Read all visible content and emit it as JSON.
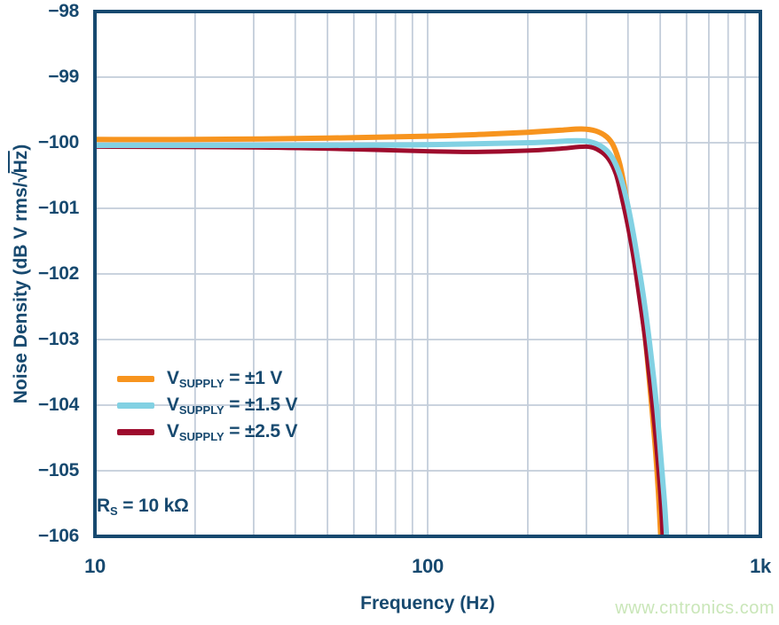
{
  "watermark": "www.cntronics.com",
  "annotation": {
    "main": "R",
    "sub": "S",
    "rest": " = 10 kΩ"
  },
  "axes": {
    "y_title_prefix": "Noise Density (dB V rms/",
    "y_sqrt": "√",
    "y_sqrt_arg": "Hz",
    "y_title_suffix": ")"
  },
  "colors": {
    "axis_text": "#17496F",
    "border": "#17496F",
    "grid": "#C3CDDA",
    "background": "#FFFFFF",
    "watermark": "#C9E6B8"
  },
  "chart_data": {
    "type": "line",
    "x_scale": "log",
    "title": "",
    "xlabel": "Frequency (Hz)",
    "ylabel": "Noise Density (dB V rms/√Hz)",
    "xlim": [
      10,
      1000
    ],
    "ylim": [
      -106,
      -98
    ],
    "grid": true,
    "legend_position": "inside-left-middle",
    "annotation": "RS = 10 kΩ",
    "x_ticks": [
      {
        "value": 10,
        "label": "10"
      },
      {
        "value": 100,
        "label": "100"
      },
      {
        "value": 1000,
        "label": "1k"
      }
    ],
    "y_ticks": [
      {
        "value": -98,
        "label": "−98"
      },
      {
        "value": -99,
        "label": "−99"
      },
      {
        "value": -100,
        "label": "−100"
      },
      {
        "value": -101,
        "label": "−101"
      },
      {
        "value": -102,
        "label": "−102"
      },
      {
        "value": -103,
        "label": "−103"
      },
      {
        "value": -104,
        "label": "−104"
      },
      {
        "value": -105,
        "label": "−105"
      },
      {
        "value": -106,
        "label": "−106"
      }
    ],
    "x_minor_grid": [
      20,
      30,
      40,
      50,
      60,
      70,
      80,
      90,
      100,
      200,
      300,
      400,
      500,
      600,
      700,
      800,
      900
    ],
    "series": [
      {
        "id": "vsupply-1v",
        "name": "VSUPPLY = ±1 V",
        "legend": {
          "main": "V",
          "sub": "SUPPLY",
          "rest": " = ±1 V"
        },
        "color": "#F7941E",
        "stroke_width": 6,
        "points": [
          [
            10,
            -99.95
          ],
          [
            20,
            -99.95
          ],
          [
            50,
            -99.93
          ],
          [
            100,
            -99.9
          ],
          [
            150,
            -99.87
          ],
          [
            200,
            -99.84
          ],
          [
            250,
            -99.81
          ],
          [
            290,
            -99.79
          ],
          [
            320,
            -99.82
          ],
          [
            345,
            -99.91
          ],
          [
            362,
            -100.05
          ],
          [
            378,
            -100.33
          ],
          [
            392,
            -100.73
          ],
          [
            405,
            -101.18
          ],
          [
            420,
            -101.73
          ],
          [
            435,
            -102.33
          ],
          [
            452,
            -103.03
          ],
          [
            468,
            -103.83
          ],
          [
            483,
            -104.63
          ],
          [
            494,
            -105.33
          ],
          [
            503,
            -106.1
          ]
        ]
      },
      {
        "id": "vsupply-2p5v",
        "name": "VSUPPLY = ±2.5 V",
        "legend": {
          "main": "V",
          "sub": "SUPPLY",
          "rest": " = ±2.5 V"
        },
        "color": "#9E0C2D",
        "stroke_width": 5,
        "points": [
          [
            10,
            -100.06
          ],
          [
            30,
            -100.07
          ],
          [
            60,
            -100.1
          ],
          [
            100,
            -100.13
          ],
          [
            140,
            -100.14
          ],
          [
            200,
            -100.12
          ],
          [
            250,
            -100.09
          ],
          [
            300,
            -100.06
          ],
          [
            328,
            -100.12
          ],
          [
            350,
            -100.25
          ],
          [
            368,
            -100.48
          ],
          [
            385,
            -100.88
          ],
          [
            400,
            -101.28
          ],
          [
            415,
            -101.73
          ],
          [
            432,
            -102.33
          ],
          [
            450,
            -102.98
          ],
          [
            468,
            -103.73
          ],
          [
            485,
            -104.53
          ],
          [
            500,
            -105.33
          ],
          [
            510,
            -106.1
          ]
        ]
      },
      {
        "id": "vsupply-1p5v",
        "name": "VSUPPLY = ±1.5 V",
        "legend": {
          "main": "V",
          "sub": "SUPPLY",
          "rest": " = ±1.5 V"
        },
        "color": "#82D1E3",
        "stroke_width": 6,
        "points": [
          [
            10,
            -100.04
          ],
          [
            50,
            -100.04
          ],
          [
            100,
            -100.03
          ],
          [
            200,
            -100.0
          ],
          [
            280,
            -99.97
          ],
          [
            315,
            -100.0
          ],
          [
            340,
            -100.09
          ],
          [
            360,
            -100.24
          ],
          [
            378,
            -100.49
          ],
          [
            395,
            -100.84
          ],
          [
            410,
            -101.24
          ],
          [
            428,
            -101.79
          ],
          [
            448,
            -102.44
          ],
          [
            468,
            -103.19
          ],
          [
            488,
            -104.04
          ],
          [
            505,
            -104.94
          ],
          [
            516,
            -105.54
          ],
          [
            524,
            -106.1
          ]
        ]
      }
    ],
    "legend_order": [
      "vsupply-1v",
      "vsupply-1p5v",
      "vsupply-2p5v"
    ]
  }
}
